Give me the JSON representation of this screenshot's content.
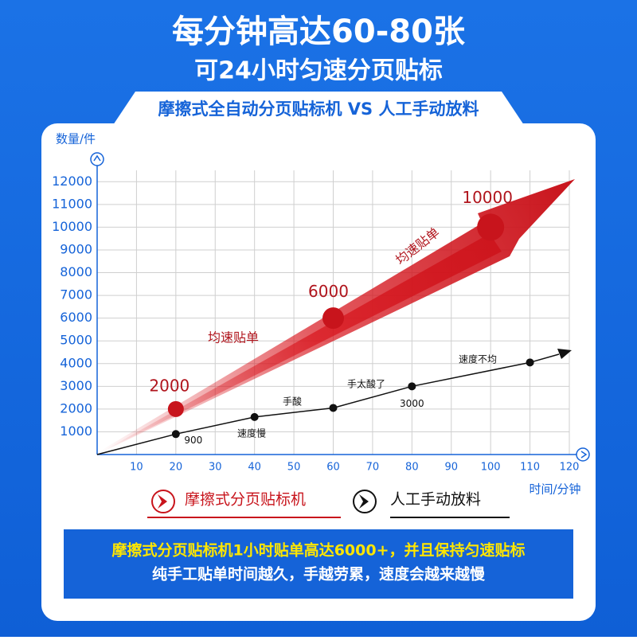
{
  "header": {
    "title": "每分钟高达60-80张",
    "subtitle": "可24小时匀速分页贴标"
  },
  "chart_data": {
    "type": "line",
    "title": "摩擦式全自动分页贴标机 VS 人工手动放料",
    "y_label": "数量/件",
    "x_label": "时间/分钟",
    "xlim": [
      0,
      120
    ],
    "xticks": [
      10,
      20,
      30,
      40,
      50,
      60,
      70,
      80,
      90,
      100,
      110,
      120
    ],
    "ylim": [
      0,
      12500
    ],
    "yticks": [
      1000,
      2000,
      3000,
      4000,
      5000,
      6000,
      7000,
      8000,
      9000,
      10000,
      11000,
      12000
    ],
    "grid": true,
    "series": [
      {
        "name": "摩擦式分页贴标机",
        "color": "#c8141c",
        "x": [
          20,
          60,
          100
        ],
        "values": [
          2000,
          6000,
          10000
        ]
      },
      {
        "name": "人工手动放料",
        "color": "#111111",
        "x": [
          20,
          40,
          60,
          80,
          110
        ],
        "values": [
          900,
          1650,
          2050,
          3000,
          4050
        ]
      }
    ],
    "annotations": [
      "均速贴单",
      "均速贴单",
      "速度慢",
      "手酸",
      "手太酸了",
      "速度不均"
    ]
  },
  "footer": {
    "line1": "摩擦式分页贴标机1小时贴单高达6000+，并且保持匀速贴标",
    "line2": "纯手工贴单时间越久，手越劳累，速度会越来越慢"
  }
}
